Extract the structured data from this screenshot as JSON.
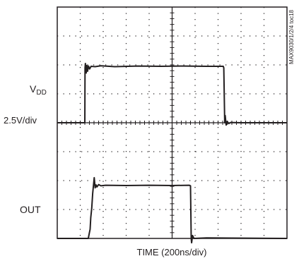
{
  "chart_data": {
    "type": "line",
    "title": "",
    "xlabel": "TIME (200ns/div)",
    "ylabel": "",
    "scale_label": "2.5V/div",
    "figure_id": "MAX9030/1/2/4 toc18",
    "grid": true,
    "x_divisions": 10,
    "y_divisions": 8,
    "xlim": [
      0,
      2000
    ],
    "x_unit": "ns",
    "y_unit": "div",
    "ylim": [
      0,
      8
    ],
    "series": [
      {
        "name": "VDD",
        "label": "V",
        "label_sub": "DD",
        "points": [
          [
            0,
            4.0
          ],
          [
            220,
            4.0
          ],
          [
            240,
            4.0
          ],
          [
            242,
            5.9
          ],
          [
            245,
            6.05
          ],
          [
            252,
            5.72
          ],
          [
            258,
            5.98
          ],
          [
            264,
            5.78
          ],
          [
            272,
            5.96
          ],
          [
            282,
            5.86
          ],
          [
            295,
            5.95
          ],
          [
            330,
            5.94
          ],
          [
            380,
            5.97
          ],
          [
            500,
            5.94
          ],
          [
            700,
            5.96
          ],
          [
            900,
            5.95
          ],
          [
            1100,
            5.96
          ],
          [
            1300,
            5.95
          ],
          [
            1445,
            5.95
          ],
          [
            1450,
            5.9
          ],
          [
            1458,
            4.0
          ],
          [
            1462,
            4.25
          ],
          [
            1470,
            3.92
          ],
          [
            1480,
            4.05
          ],
          [
            1492,
            3.97
          ],
          [
            1510,
            4.01
          ],
          [
            1600,
            4.0
          ],
          [
            2000,
            4.0
          ]
        ]
      },
      {
        "name": "OUT",
        "label": "OUT",
        "points": [
          [
            0,
            0.0
          ],
          [
            270,
            0.0
          ],
          [
            280,
            0.2
          ],
          [
            286,
            0.32
          ],
          [
            292,
            0.72
          ],
          [
            300,
            1.05
          ],
          [
            308,
            1.55
          ],
          [
            316,
            1.85
          ],
          [
            322,
            2.1
          ],
          [
            330,
            1.75
          ],
          [
            338,
            1.85
          ],
          [
            345,
            1.78
          ],
          [
            360,
            1.86
          ],
          [
            380,
            1.82
          ],
          [
            420,
            1.84
          ],
          [
            600,
            1.83
          ],
          [
            800,
            1.84
          ],
          [
            1000,
            1.83
          ],
          [
            1150,
            1.84
          ],
          [
            1160,
            1.82
          ],
          [
            1166,
            0.0
          ],
          [
            1170,
            -0.15
          ],
          [
            1178,
            0.1
          ],
          [
            1190,
            0.0
          ],
          [
            1300,
            0.02
          ],
          [
            2000,
            0.0
          ]
        ]
      }
    ]
  }
}
